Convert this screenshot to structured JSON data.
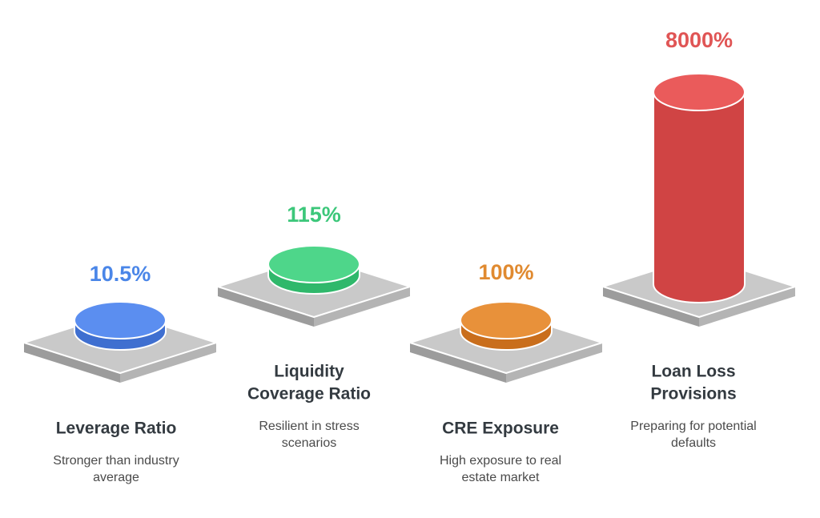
{
  "items": [
    {
      "value": "10.5%",
      "title": [
        "Leverage Ratio"
      ],
      "description": [
        "Stronger than industry",
        "average"
      ]
    },
    {
      "value": "115%",
      "title": [
        "Liquidity",
        "Coverage Ratio"
      ],
      "description": [
        "Resilient in stress",
        "scenarios"
      ]
    },
    {
      "value": "100%",
      "title": [
        "CRE Exposure"
      ],
      "description": [
        "High exposure to real",
        "estate market"
      ]
    },
    {
      "value": "8000%",
      "title": [
        "Loan Loss",
        "Provisions"
      ],
      "description": [
        "Preparing for potential",
        "defaults"
      ]
    }
  ]
}
